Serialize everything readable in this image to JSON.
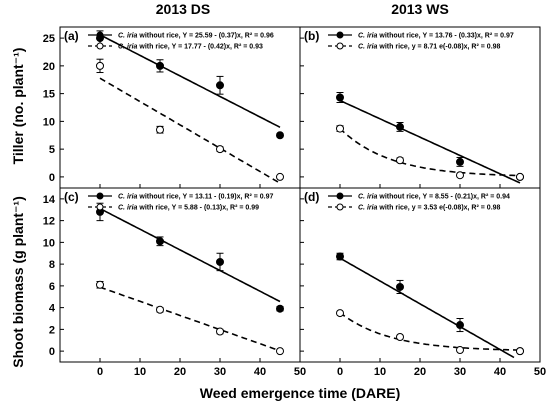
{
  "column_titles": [
    "2013 DS",
    "2013 WS"
  ],
  "y_labels": [
    "Tiller (no. plant⁻¹)",
    "Shoot biomass (g plant⁻¹)"
  ],
  "x_label": "Weed emergence time (DARE)",
  "chart_data": [
    {
      "type": "scatter",
      "panel": "(a)",
      "xlim": [
        -10,
        50
      ],
      "ylim": [
        -2,
        27
      ],
      "xticks": [
        0,
        10,
        20,
        30,
        40,
        50
      ],
      "yticks": [
        0,
        5,
        10,
        15,
        20,
        25
      ],
      "series": [
        {
          "species": "C. iria",
          "name": "without rice",
          "equation": "Y = 25.59 - (0.37)x, R² = 0.96",
          "fit": {
            "kind": "linear",
            "a": 25.59,
            "b": -0.37
          },
          "x": [
            0,
            15,
            30,
            45
          ],
          "y": [
            25,
            20,
            16.5,
            7.5
          ],
          "err": [
            1.3,
            1.1,
            1.6,
            0.3
          ],
          "marker": "filled"
        },
        {
          "species": "C. iria",
          "name": "with rice",
          "equation": "Y = 17.77 - (0.42)x, R² = 0.93",
          "fit": {
            "kind": "linear",
            "a": 17.77,
            "b": -0.42
          },
          "x": [
            0,
            15,
            30,
            45
          ],
          "y": [
            20,
            8.5,
            5,
            0
          ],
          "err": [
            1.2,
            0.6,
            0.4,
            0.1
          ],
          "marker": "open"
        }
      ]
    },
    {
      "type": "scatter",
      "panel": "(b)",
      "xlim": [
        -10,
        50
      ],
      "ylim": [
        -2,
        27
      ],
      "xticks": [
        0,
        10,
        20,
        30,
        40,
        50
      ],
      "yticks": [
        0,
        5,
        10,
        15,
        20,
        25
      ],
      "series": [
        {
          "species": "C. iria",
          "name": "without rice",
          "equation": "Y = 13.76 - (0.33)x, R² = 0.97",
          "fit": {
            "kind": "linear",
            "a": 13.76,
            "b": -0.33
          },
          "x": [
            0,
            15,
            30,
            45
          ],
          "y": [
            14.3,
            9,
            2.7,
            0
          ],
          "err": [
            0.9,
            0.8,
            0.8,
            0.1
          ],
          "marker": "filled"
        },
        {
          "species": "C. iria",
          "name": "with rice",
          "equation": "y = 8.71 e(-0.08)x, R² = 0.98",
          "fit": {
            "kind": "exp",
            "a": 8.71,
            "b": -0.08
          },
          "x": [
            0,
            15,
            30,
            45
          ],
          "y": [
            8.7,
            3,
            0.3,
            0
          ],
          "err": [
            0.5,
            0.4,
            0.2,
            0.1
          ],
          "marker": "open"
        }
      ]
    },
    {
      "type": "scatter",
      "panel": "(c)",
      "xlim": [
        -10,
        50
      ],
      "ylim": [
        -1,
        15
      ],
      "xticks": [
        0,
        10,
        20,
        30,
        40,
        50
      ],
      "yticks": [
        0,
        2,
        4,
        6,
        8,
        10,
        12,
        14
      ],
      "series": [
        {
          "species": "C. iria",
          "name": "without rice",
          "equation": "Y = 13.11 - (0.19)x, R² = 0.97",
          "fit": {
            "kind": "linear",
            "a": 13.11,
            "b": -0.19
          },
          "x": [
            0,
            15,
            30,
            45
          ],
          "y": [
            12.8,
            10.1,
            8.2,
            3.9
          ],
          "err": [
            0.8,
            0.4,
            0.8,
            0.2
          ],
          "marker": "filled"
        },
        {
          "species": "C. iria",
          "name": "with rice",
          "equation": "Y = 5.88 - (0.13)x, R² = 0.99",
          "fit": {
            "kind": "linear",
            "a": 5.88,
            "b": -0.13
          },
          "x": [
            0,
            15,
            30,
            45
          ],
          "y": [
            6.1,
            3.8,
            1.8,
            0
          ],
          "err": [
            0.3,
            0.2,
            0.2,
            0.05
          ],
          "marker": "open"
        }
      ]
    },
    {
      "type": "scatter",
      "panel": "(d)",
      "xlim": [
        -10,
        50
      ],
      "ylim": [
        -1,
        15
      ],
      "xticks": [
        0,
        10,
        20,
        30,
        40,
        50
      ],
      "yticks": [
        0,
        2,
        4,
        6,
        8,
        10,
        12,
        14
      ],
      "series": [
        {
          "species": "C. iria",
          "name": "without rice",
          "equation": "Y = 8.55 - (0.21)x, R² = 0.94",
          "fit": {
            "kind": "linear",
            "a": 8.55,
            "b": -0.21
          },
          "x": [
            0,
            15,
            30,
            45
          ],
          "y": [
            8.7,
            5.9,
            2.4,
            0
          ],
          "err": [
            0.3,
            0.6,
            0.6,
            0.05
          ],
          "marker": "filled"
        },
        {
          "species": "C. iria",
          "name": "with rice",
          "equation": "y = 3.53 e(-0.08)x, R² = 0.98",
          "fit": {
            "kind": "exp",
            "a": 3.53,
            "b": -0.08
          },
          "x": [
            0,
            15,
            30,
            45
          ],
          "y": [
            3.5,
            1.3,
            0.1,
            0
          ],
          "err": [
            0.15,
            0.15,
            0.1,
            0.05
          ],
          "marker": "open"
        }
      ]
    }
  ]
}
